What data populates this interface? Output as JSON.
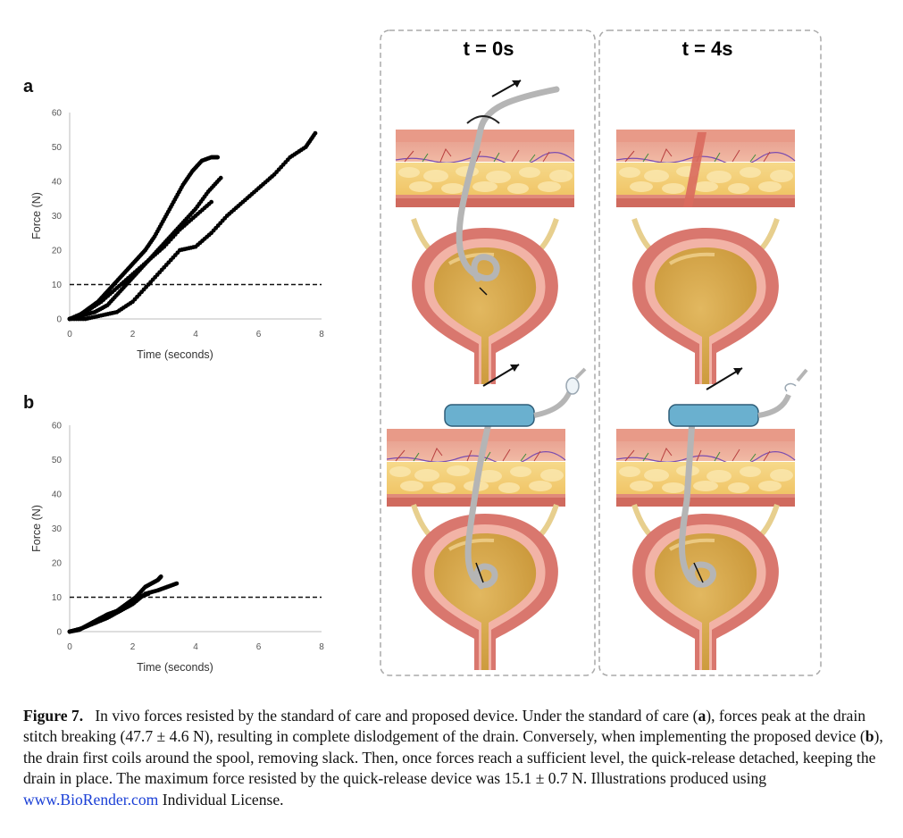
{
  "figure": {
    "panel_a_letter": "a",
    "panel_b_letter": "b",
    "illustration": {
      "col1_title": "t = 0s",
      "col2_title": "t = 4s"
    },
    "caption": {
      "label": "Figure 7.",
      "text_1": "In vivo forces resisted by the standard of care and proposed device. Under the standard of care (",
      "bold_a": "a",
      "text_2": "), forces peak at the drain stitch breaking (47.7 ± 4.6 N), resulting in complete dislodgement of the drain. Conversely, when implementing the proposed device (",
      "bold_b": "b",
      "text_3": "), the drain first coils around the spool, removing slack. Then, once forces reach a sufficient level, the quick-release detached, keeping the drain in place. The maximum force resisted by the quick-release device was 15.1 ± 0.7 N. Illustrations produced using ",
      "link": "www.BioRender.com",
      "text_4": " Individual License."
    }
  },
  "chart_data": [
    {
      "type": "scatter",
      "panel": "a",
      "xlabel": "Time (seconds)",
      "ylabel": "Force (N)",
      "xlim": [
        0,
        8
      ],
      "ylim": [
        0,
        60
      ],
      "xticks": [
        "0",
        "2",
        "4",
        "6",
        "8"
      ],
      "yticks": [
        "0",
        "10",
        "20",
        "30",
        "40",
        "50",
        "60"
      ],
      "threshold": 10,
      "grid": false,
      "series": [
        {
          "x": [
            0,
            0.3,
            0.6,
            0.9,
            1.2,
            1.5,
            1.8,
            2.1,
            2.4,
            2.7,
            3.0,
            3.3,
            3.6,
            3.9,
            4.2,
            4.5,
            4.7
          ],
          "y": [
            0,
            1,
            3,
            5,
            8,
            11,
            14,
            17,
            20,
            24,
            29,
            34,
            39,
            43,
            46,
            47,
            47
          ]
        },
        {
          "x": [
            0,
            0.4,
            0.8,
            1.2,
            1.6,
            2.0,
            2.4,
            2.8,
            3.2,
            3.6,
            4.0,
            4.4,
            4.8
          ],
          "y": [
            0,
            1,
            2,
            4,
            8,
            12,
            16,
            20,
            24,
            28,
            32,
            37,
            41
          ]
        },
        {
          "x": [
            0,
            0.5,
            1.0,
            1.5,
            2.0,
            2.5,
            3.0,
            3.5,
            4.0,
            4.5,
            5.0,
            5.5,
            6.0,
            6.5,
            7.0,
            7.5,
            7.8
          ],
          "y": [
            0,
            0,
            1,
            2,
            5,
            10,
            15,
            20,
            21,
            25,
            30,
            34,
            38,
            42,
            47,
            50,
            54
          ]
        },
        {
          "x": [
            0,
            0.5,
            1.0,
            1.5,
            2.0,
            2.5,
            3.0,
            3.5,
            4.0,
            4.5
          ],
          "y": [
            0,
            2,
            5,
            9,
            13,
            17,
            21,
            26,
            30,
            34
          ]
        }
      ]
    },
    {
      "type": "scatter",
      "panel": "b",
      "xlabel": "Time (seconds)",
      "ylabel": "Force (N)",
      "xlim": [
        0,
        8
      ],
      "ylim": [
        0,
        60
      ],
      "xticks": [
        "0",
        "2",
        "4",
        "6",
        "8"
      ],
      "yticks": [
        "0",
        "10",
        "20",
        "30",
        "40",
        "50",
        "60"
      ],
      "threshold": 10,
      "grid": false,
      "series": [
        {
          "x": [
            0,
            0.3,
            0.6,
            0.9,
            1.2,
            1.5,
            1.8,
            2.1,
            2.4,
            2.6,
            2.8,
            2.9
          ],
          "y": [
            0,
            0.5,
            2,
            3.5,
            5,
            6,
            8,
            10,
            13,
            14,
            15,
            16
          ]
        },
        {
          "x": [
            0,
            0.4,
            0.8,
            1.2,
            1.6,
            2.0,
            2.4,
            2.8,
            3.1,
            3.4
          ],
          "y": [
            0,
            1,
            2.5,
            4,
            6,
            8,
            11,
            12,
            13,
            14
          ]
        },
        {
          "x": [
            0,
            0.35,
            0.7,
            1.0,
            1.4,
            1.8,
            2.2,
            2.5
          ],
          "y": [
            0,
            0.8,
            2.5,
            4,
            5.5,
            7.5,
            10,
            11
          ]
        }
      ]
    }
  ]
}
